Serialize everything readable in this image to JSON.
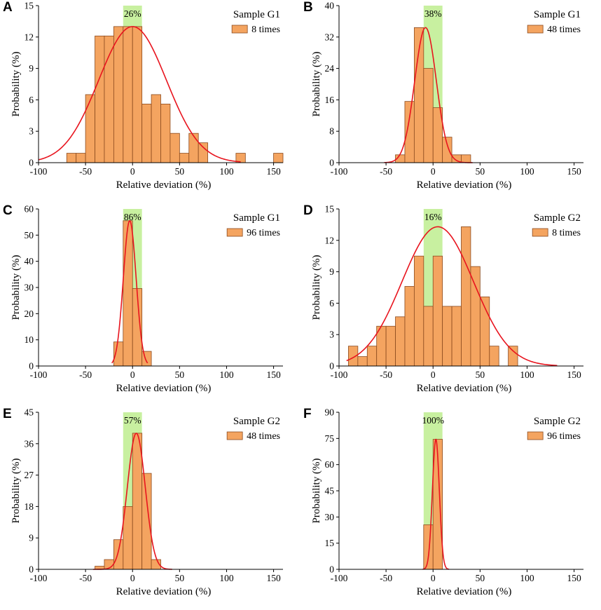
{
  "colors": {
    "bar_fill": "#f4a460",
    "bar_stroke": "#8b4a1e",
    "curve": "#e8141e",
    "band": "#c8f0a0",
    "axis": "#000000"
  },
  "chart_data": [
    {
      "id": "A",
      "panel_label": "A",
      "type": "bar",
      "title": "Sample G1",
      "series_name": "8 times",
      "band_label": "26%",
      "band": [
        -10,
        10
      ],
      "xlabel": "Relative deviation (%)",
      "ylabel": "Probability (%)",
      "xlim": [
        -100,
        160
      ],
      "ylim": [
        0,
        15
      ],
      "xticks": [
        -100,
        -50,
        0,
        50,
        100,
        150
      ],
      "yticks": [
        0,
        3,
        6,
        9,
        12,
        15
      ],
      "bin_width": 10,
      "bins": [
        {
          "x0": -70,
          "value": 0.9
        },
        {
          "x0": -60,
          "value": 0.9
        },
        {
          "x0": -50,
          "value": 6.5
        },
        {
          "x0": -40,
          "value": 12.1
        },
        {
          "x0": -30,
          "value": 12.1
        },
        {
          "x0": -20,
          "value": 13.0
        },
        {
          "x0": -10,
          "value": 13.0
        },
        {
          "x0": 0,
          "value": 13.0
        },
        {
          "x0": 10,
          "value": 5.6
        },
        {
          "x0": 20,
          "value": 6.5
        },
        {
          "x0": 30,
          "value": 5.6
        },
        {
          "x0": 40,
          "value": 2.8
        },
        {
          "x0": 50,
          "value": 0.9
        },
        {
          "x0": 60,
          "value": 2.8
        },
        {
          "x0": 70,
          "value": 1.9
        },
        {
          "x0": 110,
          "value": 0.9
        },
        {
          "x0": 150,
          "value": 0.9
        }
      ],
      "curve": {
        "mean": 0,
        "sd": 36,
        "peak": 13.0,
        "from": -100,
        "to": 115
      }
    },
    {
      "id": "B",
      "panel_label": "B",
      "type": "bar",
      "title": "Sample G1",
      "series_name": "48 times",
      "band_label": "38%",
      "band": [
        -10,
        10
      ],
      "xlabel": "Relative deviation (%)",
      "ylabel": "Probability (%)",
      "xlim": [
        -100,
        160
      ],
      "ylim": [
        0,
        40
      ],
      "xticks": [
        -100,
        -50,
        0,
        50,
        100,
        150
      ],
      "yticks": [
        0,
        8,
        16,
        24,
        32,
        40
      ],
      "bin_width": 10,
      "bins": [
        {
          "x0": -40,
          "value": 2.0
        },
        {
          "x0": -30,
          "value": 15.6
        },
        {
          "x0": -20,
          "value": 34.4
        },
        {
          "x0": -10,
          "value": 24.0
        },
        {
          "x0": 0,
          "value": 14.0
        },
        {
          "x0": 10,
          "value": 6.5
        },
        {
          "x0": 20,
          "value": 2.0
        },
        {
          "x0": 30,
          "value": 2.0
        }
      ],
      "curve": {
        "mean": -8,
        "sd": 11.5,
        "peak": 34.4,
        "from": -52,
        "to": 42
      }
    },
    {
      "id": "C",
      "panel_label": "C",
      "type": "bar",
      "title": "Sample G1",
      "series_name": "96 times",
      "band_label": "86%",
      "band": [
        -10,
        10
      ],
      "xlabel": "Relative deviation (%)",
      "ylabel": "Probability (%)",
      "xlim": [
        -100,
        160
      ],
      "ylim": [
        0,
        60
      ],
      "xticks": [
        -100,
        -50,
        0,
        50,
        100,
        150
      ],
      "yticks": [
        0,
        10,
        20,
        30,
        40,
        50,
        60
      ],
      "bin_width": 10,
      "bins": [
        {
          "x0": -20,
          "value": 9.2
        },
        {
          "x0": -10,
          "value": 55.5
        },
        {
          "x0": 0,
          "value": 29.6
        },
        {
          "x0": 10,
          "value": 5.6
        }
      ],
      "curve": {
        "mean": -3,
        "sd": 6.8,
        "peak": 55.5,
        "from": -22,
        "to": 16
      }
    },
    {
      "id": "D",
      "panel_label": "D",
      "type": "bar",
      "title": "Sample G2",
      "series_name": "8 times",
      "band_label": "16%",
      "band": [
        -10,
        10
      ],
      "xlabel": "Relative deviation (%)",
      "ylabel": "Probability (%)",
      "xlim": [
        -100,
        160
      ],
      "ylim": [
        0,
        15
      ],
      "xticks": [
        -100,
        -50,
        0,
        50,
        100,
        150
      ],
      "yticks": [
        0,
        3,
        6,
        9,
        12,
        15
      ],
      "bin_width": 10,
      "bins": [
        {
          "x0": -90,
          "value": 1.9
        },
        {
          "x0": -80,
          "value": 0.9
        },
        {
          "x0": -70,
          "value": 1.9
        },
        {
          "x0": -60,
          "value": 3.8
        },
        {
          "x0": -50,
          "value": 3.8
        },
        {
          "x0": -40,
          "value": 4.7
        },
        {
          "x0": -30,
          "value": 7.6
        },
        {
          "x0": -20,
          "value": 10.5
        },
        {
          "x0": -10,
          "value": 5.7
        },
        {
          "x0": 0,
          "value": 10.5
        },
        {
          "x0": 10,
          "value": 5.7
        },
        {
          "x0": 20,
          "value": 5.7
        },
        {
          "x0": 30,
          "value": 13.3
        },
        {
          "x0": 40,
          "value": 9.5
        },
        {
          "x0": 50,
          "value": 6.6
        },
        {
          "x0": 60,
          "value": 1.9
        },
        {
          "x0": 80,
          "value": 1.9
        }
      ],
      "curve": {
        "mean": 5,
        "sd": 38,
        "peak": 13.3,
        "from": -92,
        "to": 132
      }
    },
    {
      "id": "E",
      "panel_label": "E",
      "type": "bar",
      "title": "Sample G2",
      "series_name": "48 times",
      "band_label": "57%",
      "band": [
        -10,
        10
      ],
      "xlabel": "Relative deviation (%)",
      "ylabel": "Probability (%)",
      "xlim": [
        -100,
        160
      ],
      "ylim": [
        0,
        45
      ],
      "xticks": [
        -100,
        -50,
        0,
        50,
        100,
        150
      ],
      "yticks": [
        0,
        9,
        18,
        27,
        36,
        45
      ],
      "bin_width": 10,
      "bins": [
        {
          "x0": -40,
          "value": 0.9
        },
        {
          "x0": -30,
          "value": 2.8
        },
        {
          "x0": -20,
          "value": 8.5
        },
        {
          "x0": -10,
          "value": 18.0
        },
        {
          "x0": 0,
          "value": 39.0
        },
        {
          "x0": 10,
          "value": 27.5
        },
        {
          "x0": 20,
          "value": 2.8
        }
      ],
      "curve": {
        "mean": 4,
        "sd": 9.5,
        "peak": 39.0,
        "from": -42,
        "to": 42
      }
    },
    {
      "id": "F",
      "panel_label": "F",
      "type": "bar",
      "title": "Sample G2",
      "series_name": "96 times",
      "band_label": "100%",
      "band": [
        -10,
        10
      ],
      "xlabel": "Relative deviation (%)",
      "ylabel": "Probability (%)",
      "xlim": [
        -100,
        160
      ],
      "ylim": [
        0,
        90
      ],
      "xticks": [
        -100,
        -50,
        0,
        50,
        100,
        150
      ],
      "yticks": [
        0,
        15,
        30,
        45,
        60,
        75,
        90
      ],
      "bin_width": 10,
      "bins": [
        {
          "x0": -10,
          "value": 25.5
        },
        {
          "x0": 0,
          "value": 74.5
        }
      ],
      "curve": {
        "mean": 3,
        "sd": 3.7,
        "peak": 74.5,
        "from": -11,
        "to": 17
      }
    }
  ]
}
